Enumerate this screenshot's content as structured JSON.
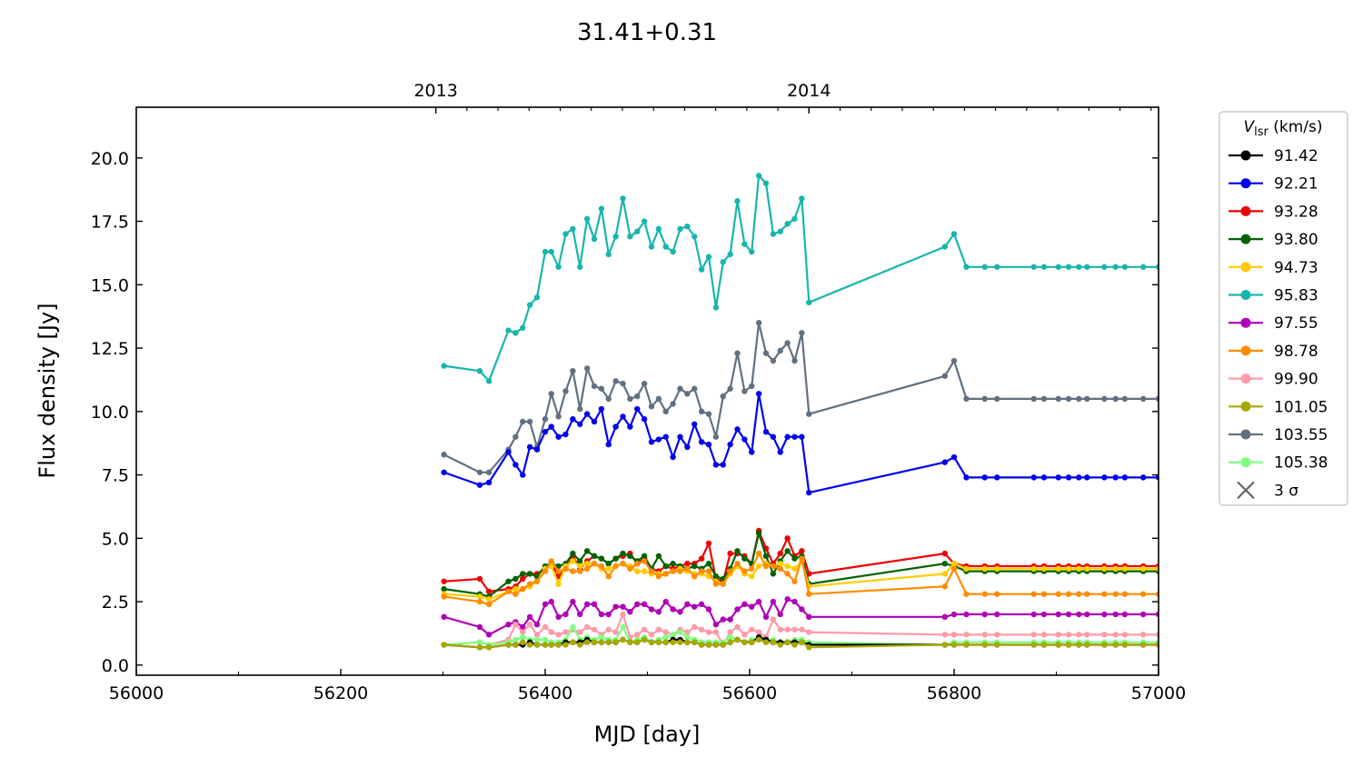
{
  "chart_data": {
    "type": "line",
    "title": "31.41+0.31",
    "xlabel": "MJD [day]",
    "ylabel": "Flux density [Jy]",
    "xlim": [
      56000,
      57000
    ],
    "ylim": [
      -0.4,
      22.0
    ],
    "x_ticks": [
      56000,
      56200,
      56400,
      56600,
      56800,
      57000
    ],
    "y_ticks": [
      "0.0",
      "2.5",
      "5.0",
      "7.5",
      "10.0",
      "12.5",
      "15.0",
      "17.5",
      "20.0"
    ],
    "top_axis": {
      "ticks": [
        {
          "label": "2013",
          "mjd": 56293
        },
        {
          "label": "2014",
          "mjd": 56658
        }
      ]
    },
    "legend": {
      "title_main": "V",
      "title_sub": "lsr",
      "title_unit": " (km/s)",
      "placement": "outside-right",
      "sigma_label": "3 σ",
      "sigma_color": "#666666"
    },
    "x": [
      56301,
      56336,
      56345,
      56364,
      56371,
      56378,
      56385,
      56392,
      56400,
      56406,
      56413,
      56420,
      56427,
      56434,
      56441,
      56448,
      56455,
      56462,
      56469,
      56476,
      56483,
      56490,
      56497,
      56504,
      56511,
      56518,
      56525,
      56532,
      56539,
      56546,
      56553,
      56560,
      56567,
      56574,
      56581,
      56588,
      56595,
      56602,
      56609,
      56616,
      56623,
      56630,
      56637,
      56644,
      56651,
      56658,
      56791,
      56800,
      56812,
      56830,
      56842,
      56878,
      56888,
      56902,
      56912,
      56922,
      56930,
      56947,
      56958,
      56967,
      56985,
      57000
    ],
    "series": [
      {
        "name": "95.83",
        "color": "#17b6ad",
        "values": [
          11.8,
          11.6,
          11.2,
          13.2,
          13.1,
          13.3,
          14.2,
          14.5,
          16.3,
          16.3,
          15.7,
          17.0,
          17.2,
          15.7,
          17.6,
          16.8,
          18.0,
          16.2,
          16.9,
          18.4,
          16.9,
          17.1,
          17.5,
          16.5,
          17.2,
          16.5,
          16.3,
          17.2,
          17.3,
          16.9,
          15.6,
          16.1,
          14.1,
          15.9,
          16.2,
          18.3,
          16.6,
          16.3,
          19.3,
          19.0,
          17.0,
          17.1,
          17.4,
          17.6,
          18.4,
          14.3,
          16.5,
          17.0,
          15.7,
          15.7,
          15.7,
          15.7,
          15.7,
          15.7,
          15.7,
          15.7,
          15.7,
          15.7,
          15.7,
          15.7,
          15.7,
          15.7
        ]
      },
      {
        "name": "103.55",
        "color": "#607080",
        "values": [
          8.3,
          7.6,
          7.6,
          8.5,
          9.0,
          9.6,
          9.6,
          8.6,
          9.7,
          10.7,
          9.8,
          10.8,
          11.6,
          10.1,
          11.7,
          11.0,
          10.9,
          10.5,
          11.2,
          11.1,
          10.5,
          10.6,
          11.1,
          10.2,
          10.5,
          10.0,
          10.3,
          10.9,
          10.7,
          10.9,
          10.0,
          9.9,
          9.0,
          10.6,
          10.9,
          12.3,
          10.8,
          11.0,
          13.5,
          12.3,
          12.0,
          12.4,
          12.7,
          12.0,
          13.1,
          9.9,
          11.4,
          12.0,
          10.5,
          10.5,
          10.5,
          10.5,
          10.5,
          10.5,
          10.5,
          10.5,
          10.5,
          10.5,
          10.5,
          10.5,
          10.5,
          10.5
        ]
      },
      {
        "name": "92.21",
        "color": "#0000ee",
        "values": [
          7.6,
          7.1,
          7.2,
          8.4,
          7.9,
          7.5,
          8.6,
          8.5,
          9.2,
          9.4,
          9.0,
          9.1,
          9.7,
          9.5,
          9.9,
          9.6,
          10.1,
          8.7,
          9.4,
          9.8,
          9.4,
          10.1,
          9.7,
          8.8,
          8.9,
          9.0,
          8.2,
          9.0,
          8.6,
          9.5,
          8.8,
          8.7,
          7.9,
          7.9,
          8.7,
          9.3,
          8.9,
          8.4,
          10.7,
          9.2,
          9.0,
          8.4,
          9.0,
          9.0,
          9.0,
          6.8,
          8.0,
          8.2,
          7.4,
          7.4,
          7.4,
          7.4,
          7.4,
          7.4,
          7.4,
          7.4,
          7.4,
          7.4,
          7.4,
          7.4,
          7.4,
          7.4
        ]
      },
      {
        "name": "93.28",
        "color": "#ee0000",
        "values": [
          3.3,
          3.4,
          2.9,
          3.0,
          3.1,
          3.4,
          3.6,
          3.6,
          3.8,
          4.0,
          3.5,
          3.8,
          4.3,
          3.8,
          4.1,
          4.3,
          4.2,
          4.0,
          4.2,
          4.3,
          4.4,
          4.0,
          4.2,
          3.8,
          3.7,
          3.9,
          3.8,
          3.9,
          4.0,
          4.0,
          4.2,
          4.8,
          3.4,
          3.3,
          4.4,
          4.4,
          4.3,
          4.0,
          5.3,
          4.6,
          4.0,
          4.4,
          5.0,
          4.3,
          4.5,
          3.6,
          4.4,
          4.0,
          3.9,
          3.9,
          3.9,
          3.9,
          3.9,
          3.9,
          3.9,
          3.9,
          3.9,
          3.9,
          3.9,
          3.9,
          3.9,
          3.9
        ]
      },
      {
        "name": "93.80",
        "color": "#006400",
        "values": [
          3.0,
          2.8,
          2.7,
          3.3,
          3.4,
          3.6,
          3.6,
          3.5,
          3.9,
          4.0,
          3.9,
          4.0,
          4.4,
          4.1,
          4.5,
          4.3,
          4.2,
          4.0,
          4.2,
          4.4,
          4.3,
          4.1,
          4.3,
          3.8,
          4.3,
          3.9,
          4.0,
          3.9,
          3.8,
          3.9,
          3.8,
          4.0,
          3.5,
          3.4,
          3.8,
          4.5,
          4.2,
          4.0,
          5.2,
          4.3,
          3.6,
          4.1,
          4.5,
          4.2,
          4.3,
          3.2,
          4.0,
          3.9,
          3.7,
          3.7,
          3.7,
          3.7,
          3.7,
          3.7,
          3.7,
          3.7,
          3.7,
          3.7,
          3.7,
          3.7,
          3.7,
          3.7
        ]
      },
      {
        "name": "94.73",
        "color": "#ffcc00",
        "values": [
          2.8,
          2.7,
          2.6,
          2.9,
          3.0,
          3.0,
          3.1,
          3.3,
          3.8,
          3.9,
          3.2,
          3.9,
          4.1,
          3.9,
          4.0,
          4.0,
          3.8,
          3.8,
          3.9,
          4.0,
          3.9,
          3.7,
          3.7,
          3.6,
          3.6,
          3.6,
          3.7,
          3.8,
          3.7,
          3.6,
          3.6,
          3.5,
          3.3,
          3.2,
          3.6,
          3.9,
          3.6,
          3.5,
          3.9,
          4.0,
          3.9,
          4.0,
          3.9,
          3.8,
          4.1,
          3.1,
          3.6,
          4.0,
          3.8,
          3.8,
          3.8,
          3.8,
          3.8,
          3.8,
          3.8,
          3.8,
          3.8,
          3.8,
          3.8,
          3.8,
          3.8,
          3.8
        ]
      },
      {
        "name": "98.78",
        "color": "#ff8c00",
        "values": [
          2.7,
          2.5,
          2.4,
          2.9,
          2.8,
          3.0,
          3.2,
          3.3,
          3.7,
          4.1,
          3.7,
          3.8,
          3.7,
          3.7,
          3.8,
          4.0,
          3.9,
          3.5,
          3.9,
          4.0,
          3.8,
          4.0,
          4.1,
          3.7,
          3.5,
          3.6,
          3.7,
          3.7,
          3.8,
          3.5,
          3.7,
          3.7,
          3.2,
          3.2,
          3.7,
          4.0,
          3.7,
          3.8,
          4.4,
          3.9,
          3.9,
          3.8,
          3.6,
          3.3,
          4.2,
          2.8,
          3.1,
          3.8,
          2.8,
          2.8,
          2.8,
          2.8,
          2.8,
          2.8,
          2.8,
          2.8,
          2.8,
          2.8,
          2.8,
          2.8,
          2.8,
          2.8
        ]
      },
      {
        "name": "97.55",
        "color": "#b000b8",
        "values": [
          1.9,
          1.5,
          1.2,
          1.6,
          1.7,
          1.5,
          1.9,
          1.6,
          2.4,
          2.5,
          1.9,
          2.0,
          2.5,
          2.0,
          2.4,
          2.4,
          2.0,
          2.0,
          2.3,
          2.3,
          2.1,
          2.4,
          2.4,
          2.2,
          2.1,
          2.5,
          2.2,
          2.1,
          2.4,
          2.3,
          2.4,
          2.2,
          1.6,
          1.8,
          1.8,
          2.2,
          2.4,
          2.3,
          2.5,
          1.9,
          2.5,
          2.0,
          2.6,
          2.5,
          2.2,
          1.9,
          1.9,
          2.0,
          2.0,
          2.0,
          2.0,
          2.0,
          2.0,
          2.0,
          2.0,
          2.0,
          2.0,
          2.0,
          2.0,
          2.0,
          2.0,
          2.0
        ]
      },
      {
        "name": "99.90",
        "color": "#ff9aa8",
        "values": [
          0.8,
          0.9,
          0.8,
          1.0,
          1.6,
          1.3,
          1.6,
          1.2,
          1.5,
          1.3,
          1.2,
          1.3,
          1.4,
          1.3,
          1.5,
          1.4,
          1.2,
          1.4,
          1.3,
          2.0,
          1.1,
          1.2,
          1.4,
          1.2,
          1.4,
          1.3,
          1.2,
          1.4,
          1.3,
          1.5,
          1.4,
          1.3,
          1.3,
          0.8,
          1.3,
          1.5,
          1.2,
          1.4,
          1.3,
          1.1,
          1.8,
          1.4,
          1.4,
          1.4,
          1.4,
          1.3,
          1.2,
          1.2,
          1.2,
          1.2,
          1.2,
          1.2,
          1.2,
          1.2,
          1.2,
          1.2,
          1.2,
          1.2,
          1.2,
          1.2,
          1.2,
          1.2
        ]
      },
      {
        "name": "105.38",
        "color": "#80ff80",
        "values": [
          0.8,
          0.9,
          0.8,
          0.9,
          1.0,
          1.1,
          1.0,
          1.0,
          1.0,
          0.9,
          0.9,
          1.0,
          1.5,
          1.0,
          1.1,
          1.0,
          1.1,
          1.0,
          1.0,
          1.5,
          0.9,
          1.0,
          1.1,
          0.9,
          1.0,
          1.1,
          1.2,
          1.3,
          1.1,
          1.0,
          0.9,
          0.9,
          0.9,
          0.9,
          1.1,
          1.0,
          0.9,
          1.0,
          1.1,
          1.0,
          1.0,
          0.9,
          0.9,
          1.0,
          1.0,
          0.9,
          0.8,
          0.9,
          0.9,
          0.9,
          0.9,
          0.9,
          0.9,
          0.9,
          0.9,
          0.9,
          0.9,
          0.9,
          0.9,
          0.9,
          0.9,
          0.9
        ]
      },
      {
        "name": "91.42",
        "color": "#000000",
        "values": [
          0.8,
          0.7,
          0.7,
          0.8,
          0.8,
          0.8,
          0.9,
          0.8,
          0.8,
          0.8,
          0.8,
          0.9,
          0.9,
          0.9,
          1.0,
          0.9,
          0.9,
          0.9,
          0.9,
          1.0,
          0.9,
          0.9,
          1.0,
          0.9,
          0.9,
          0.9,
          1.0,
          1.0,
          0.9,
          0.9,
          0.8,
          0.8,
          0.8,
          0.8,
          0.9,
          1.0,
          0.9,
          0.9,
          1.1,
          1.0,
          0.9,
          0.9,
          0.9,
          0.9,
          0.9,
          0.8,
          0.8,
          0.8,
          0.8,
          0.8,
          0.8,
          0.8,
          0.8,
          0.8,
          0.8,
          0.8,
          0.8,
          0.8,
          0.8,
          0.8,
          0.8,
          0.8
        ]
      },
      {
        "name": "101.05",
        "color": "#a8a800",
        "values": [
          0.8,
          0.7,
          0.7,
          0.8,
          0.8,
          0.9,
          0.8,
          0.8,
          0.8,
          0.8,
          0.8,
          0.8,
          0.9,
          0.8,
          0.9,
          0.9,
          0.9,
          0.9,
          0.9,
          1.0,
          0.9,
          0.9,
          1.0,
          0.9,
          0.9,
          0.9,
          0.9,
          0.9,
          0.9,
          0.9,
          0.8,
          0.8,
          0.8,
          0.8,
          0.9,
          1.0,
          0.9,
          0.9,
          1.0,
          0.9,
          0.9,
          0.8,
          0.9,
          0.8,
          0.9,
          0.7,
          0.8,
          0.8,
          0.8,
          0.8,
          0.8,
          0.8,
          0.8,
          0.8,
          0.8,
          0.8,
          0.8,
          0.8,
          0.8,
          0.8,
          0.8,
          0.8
        ]
      }
    ],
    "legend_order": [
      "91.42",
      "92.21",
      "93.28",
      "93.80",
      "94.73",
      "95.83",
      "97.55",
      "98.78",
      "99.90",
      "101.05",
      "103.55",
      "105.38"
    ]
  }
}
